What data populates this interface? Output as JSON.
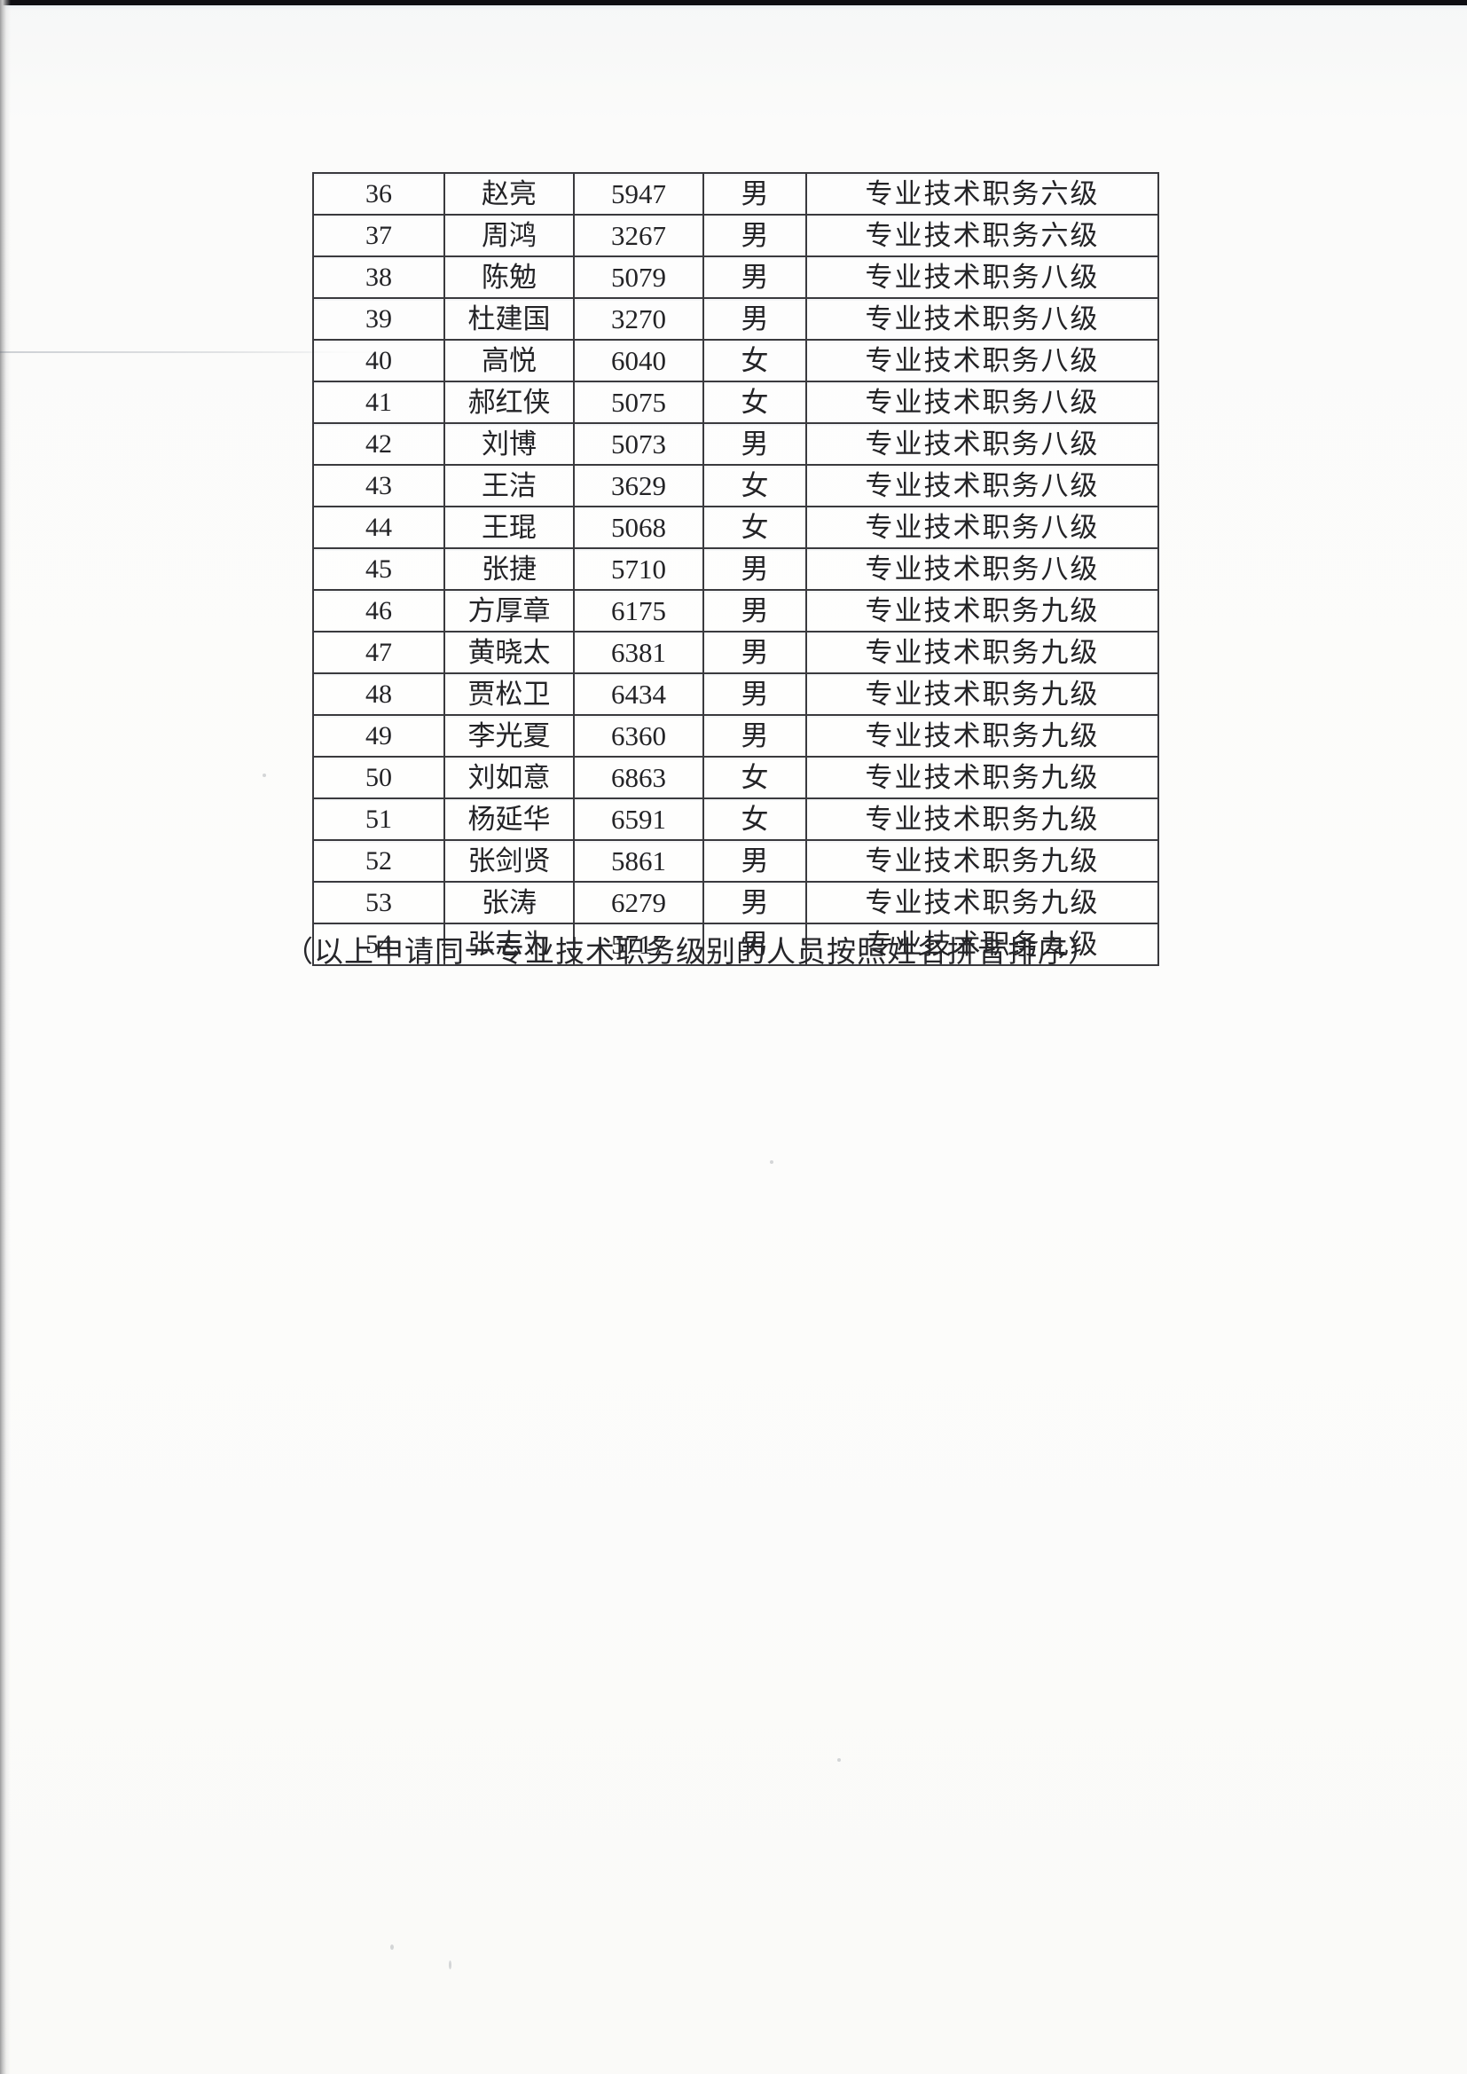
{
  "document": {
    "footnote": "（以上申请同一专业技术职务级别的人员按照姓名拼音排序）"
  },
  "table": {
    "rows": [
      {
        "no": "36",
        "name": "赵亮",
        "number": "5947",
        "gender": "男",
        "level": "专业技术职务六级"
      },
      {
        "no": "37",
        "name": "周鸿",
        "number": "3267",
        "gender": "男",
        "level": "专业技术职务六级"
      },
      {
        "no": "38",
        "name": "陈勉",
        "number": "5079",
        "gender": "男",
        "level": "专业技术职务八级"
      },
      {
        "no": "39",
        "name": "杜建国",
        "number": "3270",
        "gender": "男",
        "level": "专业技术职务八级"
      },
      {
        "no": "40",
        "name": "高悦",
        "number": "6040",
        "gender": "女",
        "level": "专业技术职务八级"
      },
      {
        "no": "41",
        "name": "郝红侠",
        "number": "5075",
        "gender": "女",
        "level": "专业技术职务八级"
      },
      {
        "no": "42",
        "name": "刘博",
        "number": "5073",
        "gender": "男",
        "level": "专业技术职务八级"
      },
      {
        "no": "43",
        "name": "王洁",
        "number": "3629",
        "gender": "女",
        "level": "专业技术职务八级"
      },
      {
        "no": "44",
        "name": "王琨",
        "number": "5068",
        "gender": "女",
        "level": "专业技术职务八级"
      },
      {
        "no": "45",
        "name": "张捷",
        "number": "5710",
        "gender": "男",
        "level": "专业技术职务八级"
      },
      {
        "no": "46",
        "name": "方厚章",
        "number": "6175",
        "gender": "男",
        "level": "专业技术职务九级"
      },
      {
        "no": "47",
        "name": "黄晓太",
        "number": "6381",
        "gender": "男",
        "level": "专业技术职务九级"
      },
      {
        "no": "48",
        "name": "贾松卫",
        "number": "6434",
        "gender": "男",
        "level": "专业技术职务九级"
      },
      {
        "no": "49",
        "name": "李光夏",
        "number": "6360",
        "gender": "男",
        "level": "专业技术职务九级"
      },
      {
        "no": "50",
        "name": "刘如意",
        "number": "6863",
        "gender": "女",
        "level": "专业技术职务九级"
      },
      {
        "no": "51",
        "name": "杨延华",
        "number": "6591",
        "gender": "女",
        "level": "专业技术职务九级"
      },
      {
        "no": "52",
        "name": "张剑贤",
        "number": "5861",
        "gender": "男",
        "level": "专业技术职务九级"
      },
      {
        "no": "53",
        "name": "张涛",
        "number": "6279",
        "gender": "男",
        "level": "专业技术职务九级"
      },
      {
        "no": "54",
        "name": "张志为",
        "number": "5717",
        "gender": "男",
        "level": "专业技术职务九级"
      }
    ]
  }
}
